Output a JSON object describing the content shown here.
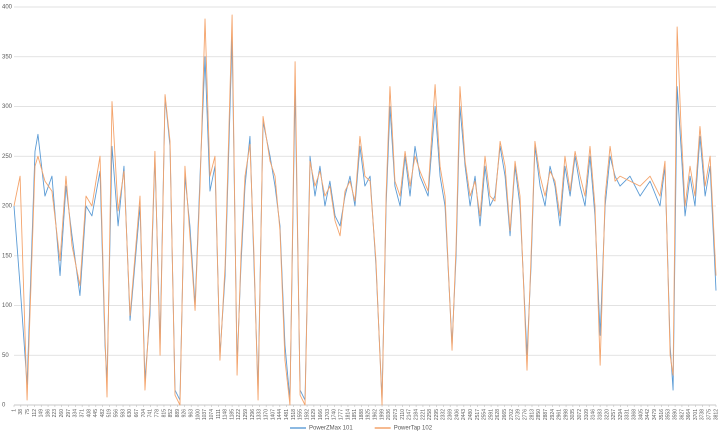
{
  "chart_data": {
    "type": "line",
    "x": [
      1,
      34,
      72,
      115,
      131,
      169,
      207,
      251,
      283,
      316,
      359,
      392,
      424,
      468,
      495,
      506,
      533,
      566,
      598,
      631,
      685,
      712,
      739,
      766,
      794,
      821,
      848,
      875,
      902,
      929,
      956,
      984,
      1011,
      1038,
      1065,
      1092,
      1119,
      1147,
      1185,
      1212,
      1233,
      1255,
      1282,
      1304,
      1326,
      1353,
      1391,
      1418,
      1445,
      1472,
      1499,
      1527,
      1554,
      1581,
      1608,
      1635,
      1662,
      1689,
      1716,
      1744,
      1771,
      1798,
      1825,
      1852,
      1879,
      1906,
      1934,
      1966,
      1999,
      2021,
      2042,
      2069,
      2097,
      2124,
      2151,
      2178,
      2205,
      2249,
      2287,
      2314,
      2341,
      2379,
      2401,
      2422,
      2450,
      2477,
      2504,
      2531,
      2558,
      2585,
      2612,
      2640,
      2667,
      2694,
      2721,
      2748,
      2786,
      2808,
      2829,
      2857,
      2884,
      2911,
      2938,
      2965,
      2992,
      3020,
      3047,
      3074,
      3101,
      3128,
      3155,
      3183,
      3210,
      3237,
      3264,
      3291,
      3345,
      3400,
      3454,
      3508,
      3535,
      3563,
      3579,
      3601,
      3622,
      3644,
      3671,
      3698,
      3725,
      3753,
      3780,
      3812
    ],
    "series": [
      {
        "name": "PowerZMax 101",
        "color": "#5b9bd5",
        "values": [
          200,
          120,
          20,
          255,
          272,
          210,
          230,
          130,
          220,
          170,
          110,
          200,
          190,
          235,
          60,
          25,
          260,
          180,
          240,
          85,
          200,
          25,
          90,
          250,
          60,
          310,
          260,
          15,
          5,
          230,
          180,
          100,
          230,
          350,
          215,
          240,
          50,
          130,
          370,
          40,
          140,
          220,
          270,
          140,
          15,
          285,
          250,
          220,
          180,
          60,
          5,
          320,
          15,
          5,
          250,
          210,
          240,
          200,
          225,
          190,
          180,
          210,
          230,
          200,
          260,
          220,
          230,
          140,
          5,
          200,
          300,
          220,
          200,
          250,
          210,
          260,
          230,
          210,
          300,
          230,
          200,
          60,
          150,
          300,
          240,
          200,
          230,
          180,
          240,
          200,
          210,
          260,
          230,
          170,
          240,
          200,
          50,
          140,
          260,
          220,
          200,
          240,
          220,
          180,
          240,
          210,
          250,
          220,
          200,
          250,
          190,
          70,
          200,
          250,
          230,
          220,
          230,
          210,
          225,
          200,
          240,
          60,
          15,
          320,
          260,
          190,
          230,
          200,
          270,
          210,
          240,
          115
        ]
      },
      {
        "name": "PowerTap 102",
        "color": "#f4a46c",
        "values": [
          200,
          230,
          5,
          240,
          250,
          225,
          215,
          145,
          230,
          160,
          120,
          210,
          200,
          250,
          70,
          8,
          305,
          195,
          235,
          90,
          210,
          15,
          100,
          255,
          50,
          312,
          265,
          10,
          0,
          240,
          170,
          95,
          220,
          388,
          230,
          250,
          45,
          140,
          392,
          30,
          150,
          230,
          262,
          150,
          5,
          290,
          245,
          230,
          175,
          45,
          0,
          345,
          10,
          0,
          245,
          220,
          235,
          210,
          220,
          185,
          170,
          215,
          225,
          205,
          270,
          230,
          225,
          145,
          0,
          210,
          320,
          225,
          210,
          255,
          220,
          250,
          235,
          215,
          322,
          240,
          210,
          55,
          160,
          320,
          245,
          210,
          225,
          190,
          250,
          210,
          205,
          265,
          240,
          175,
          245,
          210,
          35,
          150,
          265,
          230,
          210,
          235,
          225,
          190,
          250,
          215,
          255,
          230,
          210,
          260,
          200,
          40,
          210,
          260,
          225,
          230,
          225,
          220,
          230,
          210,
          245,
          50,
          30,
          380,
          280,
          200,
          240,
          210,
          280,
          220,
          250,
          130
        ]
      }
    ],
    "xlim": [
      1,
      3812
    ],
    "xticks": [
      1,
      38,
      75,
      112,
      149,
      186,
      223,
      260,
      297,
      334,
      371,
      408,
      445,
      482,
      519,
      556,
      593,
      630,
      667,
      704,
      741,
      778,
      815,
      852,
      889,
      926,
      963,
      1000,
      1037,
      1074,
      1111,
      1148,
      1185,
      1222,
      1259,
      1296,
      1333,
      1370,
      1407,
      1444,
      1481,
      1518,
      1555,
      1592,
      1629,
      1666,
      1703,
      1740,
      1777,
      1814,
      1851,
      1888,
      1925,
      1962,
      1999,
      2036,
      2073,
      2110,
      2147,
      2184,
      2221,
      2258,
      2295,
      2332,
      2369,
      2406,
      2443,
      2480,
      2517,
      2554,
      2591,
      2628,
      2665,
      2702,
      2739,
      2776,
      2813,
      2850,
      2887,
      2924,
      2961,
      2998,
      3035,
      3072,
      3109,
      3146,
      3183,
      3220,
      3257,
      3294,
      3331,
      3368,
      3405,
      3442,
      3479,
      3516,
      3553,
      3590,
      3627,
      3664,
      3701,
      3738,
      3775,
      3812
    ],
    "ylim": [
      0,
      400
    ],
    "yticks": [
      0,
      50,
      100,
      150,
      200,
      250,
      300,
      350,
      400
    ],
    "grid": true,
    "legend": "bottom"
  }
}
